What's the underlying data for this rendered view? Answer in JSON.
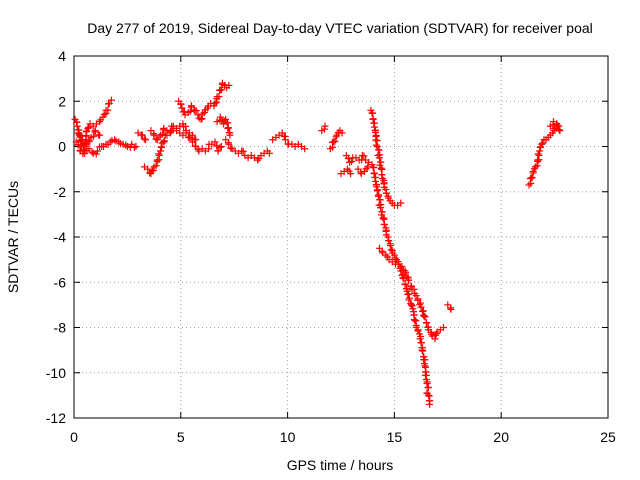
{
  "chart_data": {
    "type": "scatter",
    "title": "Day 277 of 2019, Sidereal Day-to-day VTEC variation (SDTVAR) for receiver poal",
    "xlabel": "GPS time / hours",
    "ylabel": "SDTVAR / TECUs",
    "xlim": [
      0,
      25
    ],
    "ylim": [
      -12,
      4
    ],
    "xticks": [
      0,
      5,
      10,
      15,
      20,
      25
    ],
    "yticks": [
      -12,
      -10,
      -8,
      -6,
      -4,
      -2,
      0,
      2,
      4
    ],
    "grid": true,
    "marker": "+",
    "color": "#ff0000",
    "series": [
      {
        "name": "SDTVAR",
        "segments": [
          [
            [
              0.05,
              1.2
            ],
            [
              0.15,
              0.9
            ],
            [
              0.25,
              0.5
            ],
            [
              0.35,
              0.0
            ],
            [
              0.45,
              -0.2
            ],
            [
              0.55,
              0.3
            ],
            [
              0.65,
              0.8
            ],
            [
              0.75,
              1.0
            ],
            [
              0.9,
              0.9
            ],
            [
              1.05,
              1.0
            ],
            [
              1.2,
              1.1
            ],
            [
              1.35,
              1.3
            ],
            [
              1.5,
              1.6
            ],
            [
              1.65,
              1.9
            ],
            [
              1.75,
              2.05
            ]
          ],
          [
            [
              0.1,
              0.2
            ],
            [
              0.3,
              -0.2
            ],
            [
              0.5,
              -0.3
            ],
            [
              0.7,
              -0.1
            ],
            [
              0.9,
              -0.3
            ],
            [
              1.1,
              -0.2
            ],
            [
              1.3,
              0.0
            ],
            [
              1.5,
              0.1
            ],
            [
              1.7,
              0.2
            ],
            [
              1.9,
              0.3
            ],
            [
              2.1,
              0.2
            ],
            [
              2.3,
              0.1
            ],
            [
              2.5,
              0.0
            ],
            [
              2.7,
              0.1
            ],
            [
              2.9,
              0.0
            ]
          ],
          [
            [
              0.2,
              0.6
            ],
            [
              0.4,
              0.3
            ],
            [
              0.6,
              0.1
            ],
            [
              0.8,
              0.4
            ],
            [
              1.0,
              0.7
            ],
            [
              1.2,
              0.5
            ]
          ],
          [
            [
              3.0,
              0.6
            ],
            [
              3.2,
              0.5
            ],
            [
              3.35,
              0.3
            ]
          ],
          [
            [
              3.3,
              -0.9
            ],
            [
              3.45,
              -1.0
            ],
            [
              3.6,
              -1.2
            ],
            [
              3.75,
              -0.9
            ],
            [
              3.9,
              -0.6
            ],
            [
              4.05,
              -0.2
            ],
            [
              4.2,
              0.2
            ],
            [
              4.35,
              0.5
            ],
            [
              4.5,
              0.6
            ],
            [
              4.65,
              0.8
            ],
            [
              4.8,
              0.7
            ],
            [
              4.95,
              0.6
            ],
            [
              5.1,
              0.5
            ],
            [
              5.25,
              0.6
            ],
            [
              5.4,
              0.4
            ],
            [
              5.55,
              0.2
            ],
            [
              5.7,
              0.0
            ],
            [
              5.85,
              -0.2
            ],
            [
              6.0,
              -0.1
            ],
            [
              6.15,
              -0.2
            ],
            [
              6.3,
              -0.1
            ],
            [
              6.45,
              0.1
            ],
            [
              6.6,
              0.2
            ],
            [
              6.75,
              -0.2
            ],
            [
              6.9,
              0.0
            ]
          ],
          [
            [
              3.6,
              0.7
            ],
            [
              3.75,
              0.5
            ],
            [
              3.9,
              0.3
            ],
            [
              4.05,
              0.5
            ],
            [
              4.2,
              0.8
            ],
            [
              4.35,
              0.7
            ],
            [
              4.5,
              0.6
            ],
            [
              4.65,
              0.9
            ],
            [
              4.8,
              0.8
            ],
            [
              4.95,
              0.9
            ],
            [
              5.1,
              1.0
            ],
            [
              5.25,
              0.7
            ],
            [
              5.4,
              0.6
            ],
            [
              5.55,
              0.5
            ],
            [
              5.7,
              0.3
            ]
          ],
          [
            [
              4.9,
              2.0
            ],
            [
              5.05,
              1.7
            ],
            [
              5.2,
              1.4
            ],
            [
              5.35,
              1.5
            ],
            [
              5.5,
              1.8
            ],
            [
              5.65,
              1.6
            ],
            [
              5.8,
              1.4
            ],
            [
              5.95,
              1.2
            ],
            [
              6.1,
              1.5
            ],
            [
              6.25,
              1.7
            ],
            [
              6.4,
              1.9
            ],
            [
              6.55,
              1.8
            ],
            [
              6.7,
              2.2
            ],
            [
              6.85,
              2.5
            ],
            [
              6.95,
              2.8
            ],
            [
              7.05,
              2.7
            ],
            [
              7.15,
              2.6
            ],
            [
              7.25,
              2.7
            ]
          ],
          [
            [
              6.7,
              1.1
            ],
            [
              6.85,
              1.3
            ],
            [
              7.0,
              1.0
            ],
            [
              7.1,
              1.2
            ],
            [
              7.2,
              0.8
            ],
            [
              7.3,
              0.5
            ]
          ],
          [
            [
              7.1,
              0.3
            ],
            [
              7.25,
              0.1
            ],
            [
              7.4,
              -0.1
            ],
            [
              7.55,
              -0.2
            ],
            [
              7.7,
              -0.3
            ],
            [
              7.85,
              -0.2
            ],
            [
              8.0,
              -0.4
            ],
            [
              8.15,
              -0.5
            ],
            [
              8.3,
              -0.4
            ],
            [
              8.45,
              -0.5
            ],
            [
              8.6,
              -0.6
            ],
            [
              8.75,
              -0.4
            ],
            [
              8.9,
              -0.3
            ],
            [
              9.05,
              -0.2
            ],
            [
              9.15,
              -0.3
            ]
          ],
          [
            [
              9.3,
              0.3
            ],
            [
              9.45,
              0.4
            ],
            [
              9.6,
              0.5
            ],
            [
              9.75,
              0.6
            ],
            [
              9.9,
              0.3
            ],
            [
              10.05,
              0.1
            ],
            [
              10.2,
              0.1
            ],
            [
              10.35,
              0.0
            ],
            [
              10.5,
              0.1
            ],
            [
              10.65,
              0.0
            ],
            [
              10.8,
              -0.1
            ]
          ],
          [
            [
              11.6,
              0.7
            ],
            [
              11.75,
              0.9
            ]
          ],
          [
            [
              12.0,
              -0.1
            ],
            [
              12.15,
              0.2
            ],
            [
              12.3,
              0.5
            ],
            [
              12.45,
              0.7
            ],
            [
              12.55,
              0.6
            ]
          ],
          [
            [
              12.5,
              -1.2
            ],
            [
              12.65,
              -1.1
            ],
            [
              12.8,
              -1.0
            ],
            [
              12.95,
              -1.2
            ]
          ],
          [
            [
              12.75,
              -0.4
            ],
            [
              12.9,
              -0.7
            ],
            [
              13.05,
              -0.5
            ],
            [
              13.2,
              -0.5
            ],
            [
              13.35,
              -0.6
            ],
            [
              13.5,
              -0.4
            ],
            [
              13.65,
              -0.6
            ],
            [
              13.8,
              -0.7
            ]
          ],
          [
            [
              13.3,
              -1.0
            ],
            [
              13.45,
              -1.2
            ],
            [
              13.6,
              -1.1
            ],
            [
              13.75,
              -0.9
            ]
          ],
          [
            [
              13.9,
              1.6
            ],
            [
              14.0,
              1.2
            ],
            [
              14.1,
              0.7
            ],
            [
              14.2,
              0.0
            ],
            [
              14.3,
              -0.5
            ],
            [
              14.4,
              -1.0
            ],
            [
              14.5,
              -1.5
            ],
            [
              14.6,
              -1.9
            ],
            [
              14.7,
              -2.2
            ],
            [
              14.8,
              -2.4
            ],
            [
              14.9,
              -2.5
            ],
            [
              15.0,
              -2.6
            ],
            [
              15.15,
              -2.6
            ],
            [
              15.3,
              -2.5
            ]
          ],
          [
            [
              13.95,
              -0.8
            ],
            [
              14.05,
              -1.2
            ],
            [
              14.15,
              -1.7
            ],
            [
              14.25,
              -2.2
            ],
            [
              14.35,
              -2.7
            ],
            [
              14.5,
              -3.2
            ],
            [
              14.6,
              -3.6
            ],
            [
              14.7,
              -4.0
            ],
            [
              14.8,
              -4.3
            ],
            [
              14.9,
              -4.6
            ],
            [
              15.0,
              -4.8
            ],
            [
              15.1,
              -5.0
            ],
            [
              15.2,
              -5.2
            ],
            [
              15.3,
              -5.5
            ],
            [
              15.4,
              -5.8
            ],
            [
              15.5,
              -6.1
            ],
            [
              15.6,
              -6.4
            ],
            [
              15.7,
              -6.7
            ],
            [
              15.8,
              -7.0
            ],
            [
              15.9,
              -7.3
            ],
            [
              16.0,
              -7.7
            ],
            [
              16.1,
              -8.1
            ],
            [
              16.2,
              -8.5
            ],
            [
              16.3,
              -9.0
            ],
            [
              16.4,
              -9.6
            ],
            [
              16.5,
              -10.3
            ],
            [
              16.6,
              -11.0
            ],
            [
              16.65,
              -11.4
            ]
          ],
          [
            [
              14.3,
              -4.5
            ],
            [
              14.45,
              -4.7
            ],
            [
              14.6,
              -4.8
            ],
            [
              14.75,
              -5.0
            ],
            [
              14.9,
              -5.1
            ],
            [
              15.05,
              -5.2
            ],
            [
              15.2,
              -5.2
            ],
            [
              15.35,
              -5.3
            ],
            [
              15.5,
              -5.5
            ],
            [
              15.65,
              -5.8
            ],
            [
              15.8,
              -6.2
            ],
            [
              15.95,
              -6.5
            ],
            [
              16.1,
              -6.8
            ],
            [
              16.25,
              -7.1
            ],
            [
              16.4,
              -7.5
            ],
            [
              16.5,
              -7.8
            ],
            [
              16.6,
              -8.1
            ],
            [
              16.75,
              -8.3
            ],
            [
              16.9,
              -8.5
            ],
            [
              17.0,
              -8.2
            ],
            [
              17.15,
              -8.1
            ],
            [
              17.3,
              -8.0
            ]
          ],
          [
            [
              17.5,
              -7.0
            ],
            [
              17.65,
              -7.2
            ]
          ],
          [
            [
              21.3,
              -1.7
            ],
            [
              21.4,
              -1.4
            ],
            [
              21.5,
              -1.1
            ],
            [
              21.6,
              -0.9
            ],
            [
              21.7,
              -0.6
            ],
            [
              21.8,
              -0.2
            ],
            [
              21.9,
              0.1
            ],
            [
              22.0,
              0.3
            ],
            [
              22.1,
              0.3
            ],
            [
              22.2,
              0.4
            ],
            [
              22.3,
              0.5
            ],
            [
              22.4,
              0.6
            ],
            [
              22.5,
              0.8
            ],
            [
              22.6,
              1.0
            ],
            [
              22.7,
              0.9
            ]
          ],
          [
            [
              22.3,
              0.9
            ],
            [
              22.45,
              1.1
            ],
            [
              22.6,
              1.0
            ],
            [
              22.75,
              0.7
            ]
          ]
        ]
      }
    ]
  }
}
